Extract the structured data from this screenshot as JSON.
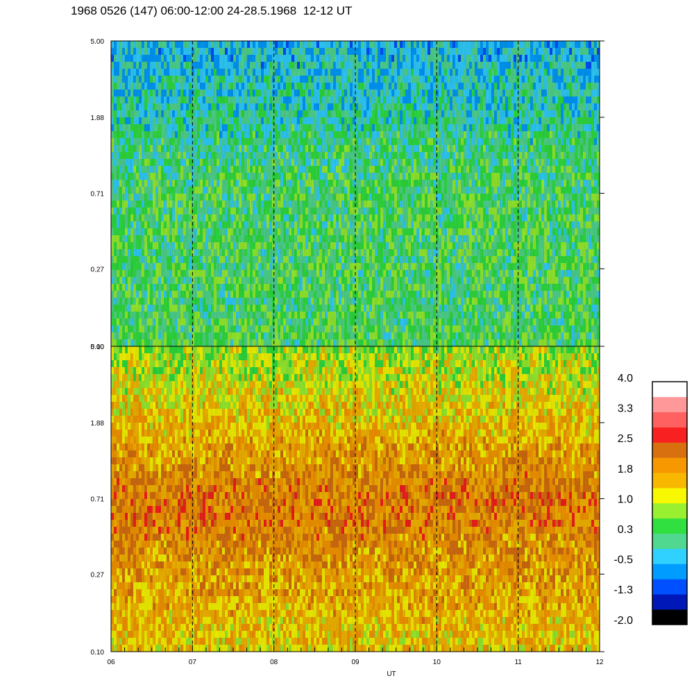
{
  "title": "1968 0526 (147) 06:00-12:00 24-28.5.1968  12-12 UT",
  "chart_data": {
    "type": "heatmap",
    "title": "1968 0526 (147) 06:00-12:00 24-28.5.1968  12-12 UT",
    "xlabel": "UT",
    "ylabel": "",
    "x_ticks": [
      "06",
      "07",
      "08",
      "09",
      "10",
      "11",
      "12"
    ],
    "xlim": [
      6,
      12
    ],
    "y_ticks": [
      "0.10",
      "0.27",
      "0.71",
      "1.88",
      "5.00"
    ],
    "ylim": [
      0.1,
      5.0
    ],
    "y_scale": "log",
    "dashed_hour_lines": [
      7,
      8,
      9,
      10,
      11
    ],
    "panels": [
      {
        "name": "upper",
        "dominant_level_range": [
          -0.5,
          1.0
        ],
        "description_levels": {
          "low_freq": 0.3,
          "mid_freq": 0.3,
          "high_freq": -0.5
        }
      },
      {
        "name": "lower",
        "dominant_level_range": [
          1.0,
          2.5
        ],
        "description_levels": {
          "low_freq": 1.4,
          "mid_freq": 2.2,
          "high_freq": 0.8
        }
      }
    ],
    "colorbar": {
      "labels": [
        "4.0",
        "3.3",
        "2.5",
        "1.8",
        "1.0",
        "0.3",
        "-0.5",
        "-1.3",
        "-2.0"
      ],
      "colors": [
        "#000000",
        "#0018b8",
        "#0050ff",
        "#009cff",
        "#30d0ff",
        "#50d890",
        "#30e040",
        "#98f030",
        "#f8f800",
        "#f8b800",
        "#f89800",
        "#d87010",
        "#f82020",
        "#ff6060",
        "#ff9898",
        "#ffffff"
      ]
    }
  }
}
